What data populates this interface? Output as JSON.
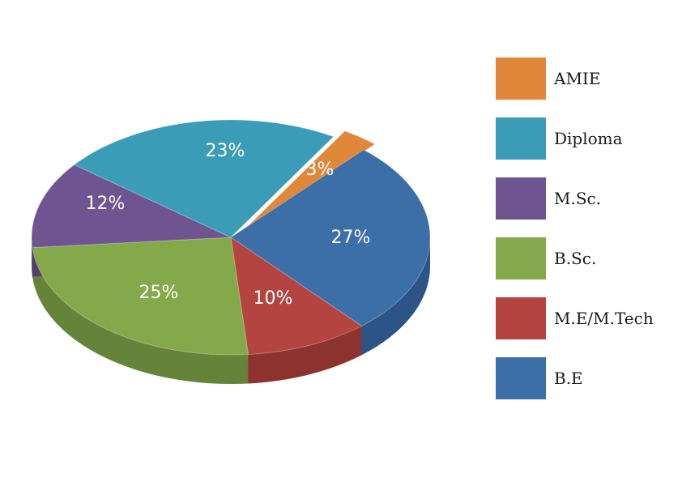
{
  "chart_data": {
    "type": "pie",
    "title": "",
    "slices": [
      {
        "label": "AMIE",
        "value": 3,
        "display": "3%",
        "color": "#E0873A",
        "side_color": "#B0662A"
      },
      {
        "label": "Diploma",
        "value": 23,
        "display": "23%",
        "color": "#3A9CB6",
        "side_color": "#2A7890"
      },
      {
        "label": "M.Sc.",
        "value": 12,
        "display": "12%",
        "color": "#6E5591",
        "side_color": "#54406F"
      },
      {
        "label": "B.Sc.",
        "value": 25,
        "display": "25%",
        "color": "#84A94A",
        "side_color": "#65843A"
      },
      {
        "label": "M.E/M.Tech",
        "value": 10,
        "display": "10%",
        "color": "#B4443F",
        "side_color": "#8C332F"
      },
      {
        "label": "B.E",
        "value": 27,
        "display": "27%",
        "color": "#3C6EA8",
        "side_color": "#2C5486"
      }
    ],
    "legend_position": "right",
    "labels_inside": true
  }
}
